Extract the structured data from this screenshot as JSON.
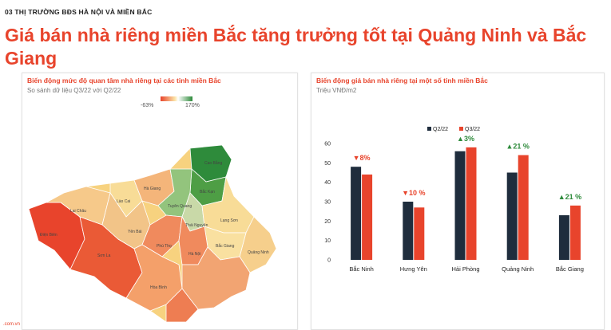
{
  "header": {
    "section": "03 THỊ TRƯỜNG BĐS HÀ NỘI VÀ MIỀN BẮC",
    "title": "Giá bán nhà riêng miền Bắc tăng trưởng tốt tại Quảng Ninh và Bắc Giang"
  },
  "map_panel": {
    "title": "Biến động mức độ quan tâm nhà riêng tại các tỉnh miền Bắc",
    "subtitle": "So sánh dữ liệu Q3/22 với Q2/22",
    "scale_min": "-63%",
    "scale_max": "170%",
    "provinces": [
      "Cao Bằng",
      "Hà Giang",
      "Lào Cai",
      "Lai Châu",
      "Bắc Kạn",
      "Tuyên Quang",
      "Điện Biên",
      "Yên Bái",
      "Lạng Sơn",
      "Thái Nguyên",
      "Sơn La",
      "Phú Thọ",
      "Bắc Giang",
      "Quảng Ninh",
      "Hà Nội",
      "Hòa Bình"
    ],
    "colors": {
      "strong_neg": "#e8442c",
      "neg": "#f08a5d",
      "mild": "#fbe3a6",
      "pos": "#93c47d",
      "strong_pos": "#2e8b3b"
    }
  },
  "chart_panel": {
    "title": "Biến động giá bán nhà riêng tại một số tỉnh miền Bắc",
    "subtitle": "Triệu VNĐ/m2"
  },
  "chart_data": {
    "type": "bar",
    "categories": [
      "Bắc Ninh",
      "Hưng Yên",
      "Hải Phòng",
      "Quảng Ninh",
      "Bắc Giang"
    ],
    "series": [
      {
        "name": "Q2/22",
        "values": [
          48,
          30,
          56,
          45,
          23
        ],
        "color": "#1f2d3d"
      },
      {
        "name": "Q3/22",
        "values": [
          44,
          27,
          58,
          54,
          28
        ],
        "color": "#e8442c"
      }
    ],
    "changes": [
      {
        "arrow": "▼",
        "text": "8%",
        "dir": "down"
      },
      {
        "arrow": "▼",
        "text": "10 %",
        "dir": "down"
      },
      {
        "arrow": "▲",
        "text": "3%",
        "dir": "up"
      },
      {
        "arrow": "▲",
        "text": "21 %",
        "dir": "up"
      },
      {
        "arrow": "▲",
        "text": "21 %",
        "dir": "up"
      }
    ],
    "yticks": [
      0,
      10,
      20,
      30,
      40,
      50,
      60
    ],
    "ylim": [
      0,
      60
    ],
    "legend_position": "top",
    "grid": false
  },
  "footer": {
    "brand": ".com.vn"
  }
}
